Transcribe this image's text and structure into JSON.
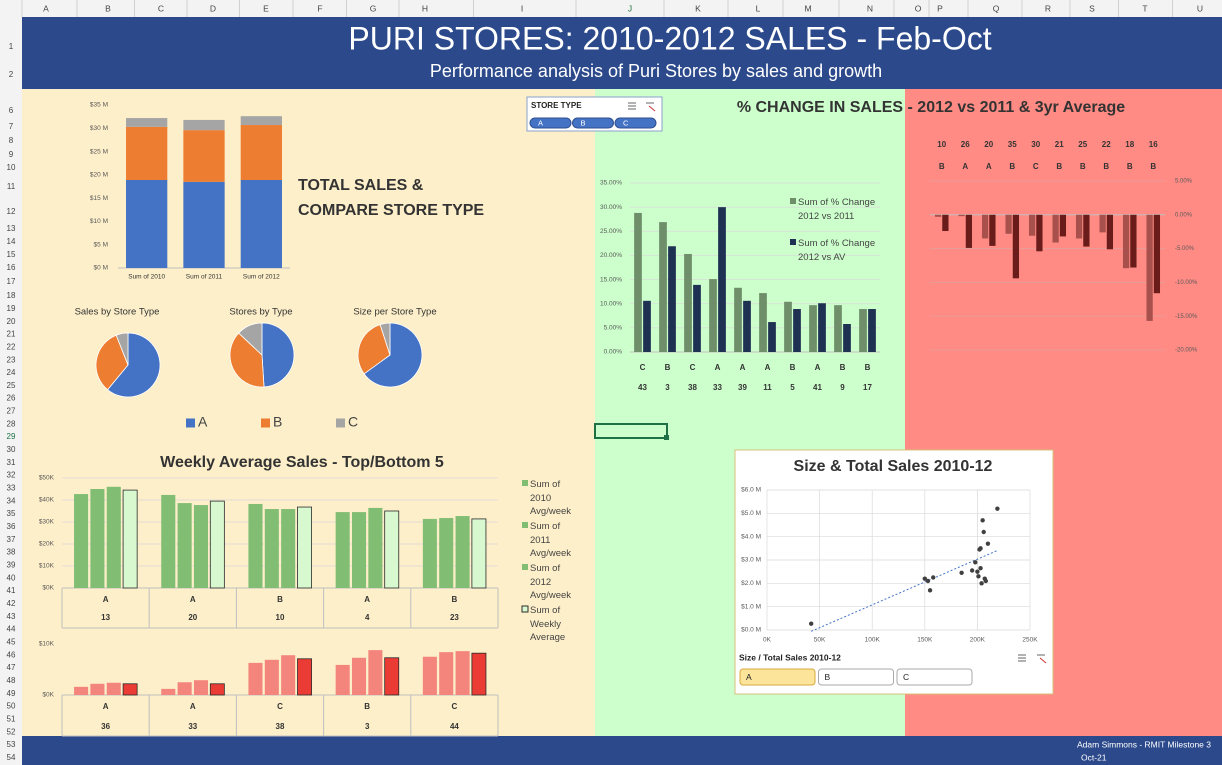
{
  "spreadsheet": {
    "column_headers": [
      "A",
      "B",
      "C",
      "D",
      "E",
      "F",
      "G",
      "H",
      "I",
      "J",
      "K",
      "L",
      "M",
      "N",
      "O",
      "P",
      "Q",
      "R",
      "S",
      "T",
      "U"
    ],
    "row_numbers": [
      1,
      2,
      6,
      7,
      8,
      9,
      10,
      11,
      12,
      13,
      14,
      15,
      16,
      17,
      18,
      19,
      20,
      21,
      22,
      23,
      24,
      25,
      26,
      27,
      28,
      29,
      30,
      31,
      32,
      33,
      34,
      35,
      36,
      37,
      38,
      39,
      40,
      41,
      42,
      43,
      44,
      45,
      46,
      47,
      48,
      49,
      50,
      51,
      52,
      53,
      54
    ]
  },
  "header": {
    "title": "PURI STORES: 2010-2012 SALES - Feb-Oct",
    "subtitle": "Performance analysis of Puri Stores by sales and growth"
  },
  "chart_data": [
    {
      "type": "bar",
      "stacked": true,
      "title": "TOTAL SALES & COMPARE STORE TYPE",
      "categories": [
        "Sum of 2010",
        "Sum of 2011",
        "Sum of 2012"
      ],
      "series": [
        {
          "name": "A",
          "color": "#4472c4",
          "values": [
            18.9,
            18.5,
            18.9
          ]
        },
        {
          "name": "B",
          "color": "#ed7d31",
          "values": [
            11.4,
            11.1,
            11.8
          ]
        },
        {
          "name": "C",
          "color": "#a5a5a5",
          "values": [
            1.9,
            2.2,
            1.9
          ]
        }
      ],
      "ylim": [
        0,
        35
      ],
      "yticks": [
        {
          "value": 0,
          "label": "$0 M"
        },
        {
          "value": 5,
          "label": "$5 M"
        },
        {
          "value": 10,
          "label": "$10 M"
        },
        {
          "value": 15,
          "label": "$15 M"
        },
        {
          "value": 20,
          "label": "$20 M"
        },
        {
          "value": 25,
          "label": "$25 M"
        },
        {
          "value": 30,
          "label": "$30 M"
        },
        {
          "value": 35,
          "label": "$35 M"
        }
      ],
      "grid": false
    },
    {
      "type": "pie",
      "title": "Sales by Store Type",
      "categories": [
        "A",
        "B",
        "C"
      ],
      "values": [
        61,
        33,
        6
      ],
      "colors": [
        "#4472c4",
        "#ed7d31",
        "#a5a5a5"
      ],
      "legend": true
    },
    {
      "type": "pie",
      "title": "Stores by Type",
      "categories": [
        "A",
        "B",
        "C"
      ],
      "values": [
        49,
        38,
        13
      ],
      "colors": [
        "#4472c4",
        "#ed7d31",
        "#a5a5a5"
      ],
      "legend": false
    },
    {
      "type": "pie",
      "title": "Size per Store Type",
      "categories": [
        "A",
        "B",
        "C"
      ],
      "values": [
        65,
        30,
        5
      ],
      "colors": [
        "#4472c4",
        "#ed7d31",
        "#a5a5a5"
      ],
      "legend": false
    },
    {
      "type": "bar",
      "stacked": false,
      "title": "Weekly Average Sales - Top/Bottom 5",
      "categories": [
        "A",
        "A",
        "B",
        "A",
        "B"
      ],
      "subcategories": [
        "13",
        "20",
        "10",
        "4",
        "23"
      ],
      "series": [
        {
          "name": "Sum of 2010 Avg/week",
          "color": "#82bd74",
          "values": [
            42.7,
            42.3,
            38.2,
            34.5,
            31.4
          ]
        },
        {
          "name": "Sum of 2011 Avg/week",
          "color": "#82bd74",
          "values": [
            45,
            38.6,
            35.9,
            34.5,
            31.8
          ]
        },
        {
          "name": "Sum of 2012 Avg/week",
          "color": "#82bd74",
          "values": [
            46,
            37.7,
            35.9,
            36.4,
            32.7
          ]
        },
        {
          "name": "Sum of Weekly Average",
          "color": "#d8f8d0",
          "edgecolor": "#2b2b2b",
          "values": [
            44.5,
            39.5,
            36.8,
            35,
            31.4
          ]
        }
      ],
      "ylim": [
        0,
        50
      ],
      "yticks": [
        {
          "value": 0,
          "label": "$0K"
        },
        {
          "value": 10,
          "label": "$10K"
        },
        {
          "value": 20,
          "label": "$20K"
        },
        {
          "value": 30,
          "label": "$30K"
        },
        {
          "value": 40,
          "label": "$40K"
        },
        {
          "value": 50,
          "label": "$50K"
        }
      ],
      "grid": true,
      "legend": "right"
    },
    {
      "type": "bar",
      "stacked": false,
      "categories": [
        "A",
        "A",
        "C",
        "B",
        "C"
      ],
      "subcategories": [
        "36",
        "33",
        "38",
        "3",
        "44"
      ],
      "series": [
        {
          "color": "#f4857d",
          "values": [
            1.6,
            1.2,
            6.3,
            5.9,
            7.5
          ]
        },
        {
          "color": "#f4857d",
          "values": [
            2.2,
            2.5,
            6.9,
            7.3,
            8.4
          ]
        },
        {
          "color": "#f4857d",
          "values": [
            2.4,
            2.9,
            7.8,
            8.8,
            8.6
          ]
        },
        {
          "color": "#ea3b34",
          "edgecolor": "#2b2b2b",
          "values": [
            2.2,
            2.2,
            7.1,
            7.3,
            8.2
          ]
        }
      ],
      "ylim": [
        0,
        10
      ],
      "yticks": [
        {
          "value": 0,
          "label": "$0K"
        },
        {
          "value": 10,
          "label": "$10K"
        }
      ],
      "grid": false
    },
    {
      "type": "bar",
      "stacked": false,
      "title": "% CHANGE IN SALES - 2012 vs 2011 & 3yr Average",
      "categories": [
        "C",
        "B",
        "C",
        "A",
        "A",
        "A",
        "B",
        "A",
        "B",
        "B"
      ],
      "subcategories": [
        "43",
        "3",
        "38",
        "33",
        "39",
        "11",
        "5",
        "41",
        "9",
        "17"
      ],
      "series": [
        {
          "name": "Sum of % Change 2012 vs 2011",
          "color": "#6e8f69",
          "values": [
            28.8,
            26.9,
            20.3,
            15.1,
            13.3,
            12.2,
            10.4,
            9.7,
            9.7,
            8.9
          ]
        },
        {
          "name": "Sum of % Change 2012 vs AV",
          "color": "#1f3152",
          "values": [
            10.6,
            21.9,
            13.9,
            30.0,
            10.6,
            6.2,
            8.9,
            10.1,
            5.8,
            8.9
          ]
        }
      ],
      "ylim": [
        0,
        35
      ],
      "yticks": [
        {
          "value": 0,
          "label": "0.00%"
        },
        {
          "value": 5,
          "label": "5.00%"
        },
        {
          "value": 10,
          "label": "10.00%"
        },
        {
          "value": 15,
          "label": "15.00%"
        },
        {
          "value": 20,
          "label": "20.00%"
        },
        {
          "value": 25,
          "label": "25.00%"
        },
        {
          "value": 30,
          "label": "30.00%"
        },
        {
          "value": 35,
          "label": "35.00%"
        }
      ],
      "grid": true,
      "legend": "right"
    },
    {
      "type": "bar",
      "stacked": false,
      "categories": [
        "B",
        "A",
        "A",
        "B",
        "C",
        "B",
        "B",
        "B",
        "B",
        "B"
      ],
      "subcategories": [
        "10",
        "26",
        "20",
        "35",
        "30",
        "21",
        "25",
        "22",
        "18",
        "16"
      ],
      "series": [
        {
          "color": "#a8514c",
          "values": [
            -0.3,
            -0.2,
            -3.5,
            -2.8,
            -3.1,
            -4.1,
            -3.5,
            -2.6,
            -7.9,
            -15.7
          ]
        },
        {
          "color": "#6a1c1a",
          "values": [
            -2.4,
            -4.9,
            -4.6,
            -9.4,
            -5.4,
            -3.2,
            -4.7,
            -5.1,
            -7.8,
            -11.6
          ]
        }
      ],
      "ylim": [
        -20,
        5
      ],
      "yticks": [
        {
          "value": 5,
          "label": "5.00%"
        },
        {
          "value": 0,
          "label": "0.00%"
        },
        {
          "value": -5,
          "label": "-5.00%"
        },
        {
          "value": -10,
          "label": "-10.00%"
        },
        {
          "value": -15,
          "label": "-15.00%"
        },
        {
          "value": -20,
          "label": "-20.00%"
        }
      ],
      "grid": true
    },
    {
      "type": "scatter",
      "title": "Size & Total Sales 2010-12",
      "color": "#404040",
      "trendline": true,
      "x": [
        42,
        150,
        153,
        155,
        158,
        185,
        195,
        198,
        200,
        201,
        202,
        203,
        203,
        204,
        205,
        206,
        207,
        208,
        210,
        219
      ],
      "values": [
        0.27,
        2.2,
        2.1,
        1.7,
        2.25,
        2.45,
        2.55,
        2.9,
        2.5,
        2.3,
        3.45,
        3.5,
        2.65,
        2.0,
        4.7,
        4.2,
        2.2,
        2.1,
        3.7,
        5.2
      ],
      "xlim": [
        0,
        250
      ],
      "xticks": [
        {
          "value": 0,
          "label": "0K"
        },
        {
          "value": 50,
          "label": "50K"
        },
        {
          "value": 100,
          "label": "100K"
        },
        {
          "value": 150,
          "label": "150K"
        },
        {
          "value": 200,
          "label": "200K"
        },
        {
          "value": 250,
          "label": "250K"
        }
      ],
      "ylim": [
        0,
        6
      ],
      "yticks": [
        {
          "value": 0,
          "label": "$0.0 M"
        },
        {
          "value": 1,
          "label": "$1.0 M"
        },
        {
          "value": 2,
          "label": "$2.0 M"
        },
        {
          "value": 3,
          "label": "$3.0 M"
        },
        {
          "value": 4,
          "label": "$4.0 M"
        },
        {
          "value": 5,
          "label": "$5.0 M"
        },
        {
          "value": 6,
          "label": "$6.0 M"
        }
      ],
      "grid": true
    }
  ],
  "slicers": [
    {
      "title": "STORE TYPE",
      "items": [
        "A",
        "B",
        "C"
      ],
      "selected_index": -1
    },
    {
      "title": "Size / Total Sales 2010-12",
      "items": [
        "A",
        "B",
        "C"
      ],
      "selected_index": 0
    }
  ],
  "footer": {
    "author": "Adam Simmons - RMIT Milestone 3",
    "date": "Oct-21"
  }
}
